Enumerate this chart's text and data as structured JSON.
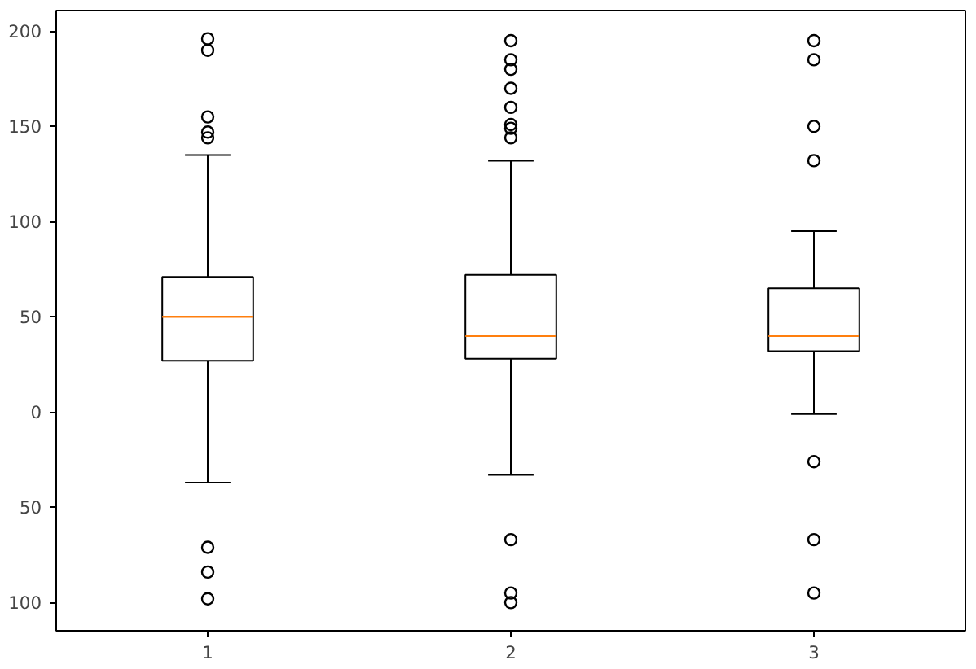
{
  "chart_data": {
    "type": "box",
    "categories": [
      "1",
      "2",
      "3"
    ],
    "boxes": [
      {
        "low": -37,
        "q1": 27,
        "median": 50,
        "q3": 71,
        "high": 135,
        "outliers": [
          196,
          190,
          155,
          147,
          144,
          -71,
          -84,
          -98
        ]
      },
      {
        "low": -33,
        "q1": 28,
        "median": 40,
        "q3": 72,
        "high": 132,
        "outliers": [
          195,
          185,
          180,
          170,
          160,
          151,
          149,
          144,
          -67,
          -95,
          -100
        ]
      },
      {
        "low": -1,
        "q1": 32,
        "median": 40,
        "q3": 65,
        "high": 95,
        "outliers": [
          195,
          185,
          150,
          132,
          -26,
          -67,
          -95
        ]
      }
    ],
    "color": "#000000",
    "ylim": [
      -114.8,
      210.8
    ],
    "yticks": [
      {
        "value": -100,
        "label": "100"
      },
      {
        "value": -50,
        "label": "50"
      },
      0,
      50,
      100,
      150,
      200
    ],
    "grid": false
  }
}
